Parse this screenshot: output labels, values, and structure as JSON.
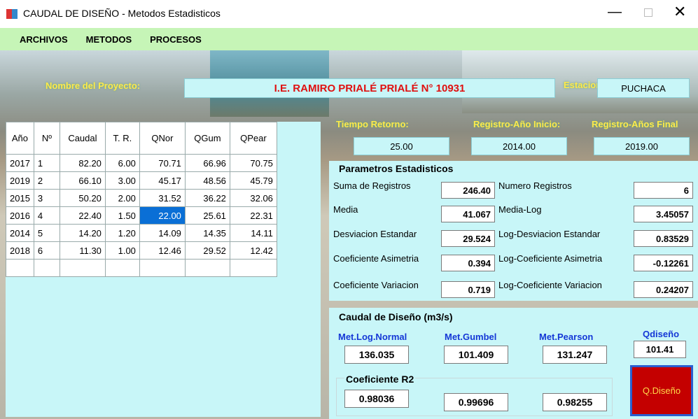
{
  "window": {
    "title": "CAUDAL DE DISEÑO - Metodos Estadisticos"
  },
  "menu": [
    "ARCHIVOS",
    "METODOS",
    "PROCESOS"
  ],
  "project": {
    "label": "Nombre del Proyecto:",
    "value": "I.E. RAMIRO PRIALÉ PRIALÉ N° 10931"
  },
  "station": {
    "label": "Estacion:",
    "value": "PUCHACA"
  },
  "table": {
    "headers": [
      "Año",
      "Nº",
      "Caudal",
      "T. R.",
      "QNor",
      "QGum",
      "QPear"
    ],
    "rows": [
      [
        "2017",
        "1",
        "82.20",
        "6.00",
        "70.71",
        "66.96",
        "70.75"
      ],
      [
        "2019",
        "2",
        "66.10",
        "3.00",
        "45.17",
        "48.56",
        "45.79"
      ],
      [
        "2015",
        "3",
        "50.20",
        "2.00",
        "31.52",
        "36.22",
        "32.06"
      ],
      [
        "2016",
        "4",
        "22.40",
        "1.50",
        "22.00",
        "25.61",
        "22.31"
      ],
      [
        "2014",
        "5",
        "14.20",
        "1.20",
        "14.09",
        "14.35",
        "14.11"
      ],
      [
        "2018",
        "6",
        "11.30",
        "1.00",
        "12.46",
        "29.52",
        "12.42"
      ]
    ]
  },
  "inputs": [
    {
      "label": "Tiempo Retorno:",
      "value": "25.00"
    },
    {
      "label": "Registro-Año Inicio:",
      "value": "2014.00"
    },
    {
      "label": "Registro-Años Final",
      "value": "2019.00"
    }
  ],
  "params": {
    "title": "Parametros Estadisticos",
    "rows": [
      [
        "Suma de Registros",
        "246.40",
        "Numero Registros",
        "6"
      ],
      [
        "Media",
        "41.067",
        "Media-Log",
        "3.45057"
      ],
      [
        "Desviacion Estandar",
        "29.524",
        "Log-Desviacion Estandar",
        "0.83529"
      ],
      [
        "Coeficiente Asimetria",
        "0.394",
        "Log-Coeficiente Asimetria",
        "-0.12261"
      ],
      [
        "Coeficiente Variacion",
        "0.719",
        "Log-Coeficiente Variacion",
        "0.24207"
      ]
    ]
  },
  "design": {
    "title": "Caudal de Diseño (m3/s)",
    "methods": [
      {
        "label": "Met.Log.Normal",
        "value": "136.035",
        "r2": "0.98036"
      },
      {
        "label": "Met.Gumbel",
        "value": "101.409",
        "r2": "0.99696"
      },
      {
        "label": "Met.Pearson",
        "value": "131.247",
        "r2": "0.98255"
      }
    ],
    "q_label": "Qdiseño",
    "q_value": "101.41",
    "r2_title": "Coeficiente R2",
    "button": "Q.Diseño"
  }
}
